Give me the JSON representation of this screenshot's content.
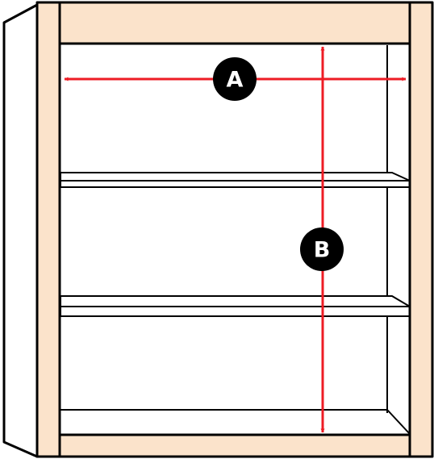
{
  "colors": {
    "wood": "#fbe3cb",
    "inner": "#ffffff",
    "outline": "#000000",
    "dimension": "#ee1c25",
    "badge": "#000000",
    "badge_text": "#ffffff"
  },
  "labels": {
    "width": "A",
    "height": "B"
  }
}
